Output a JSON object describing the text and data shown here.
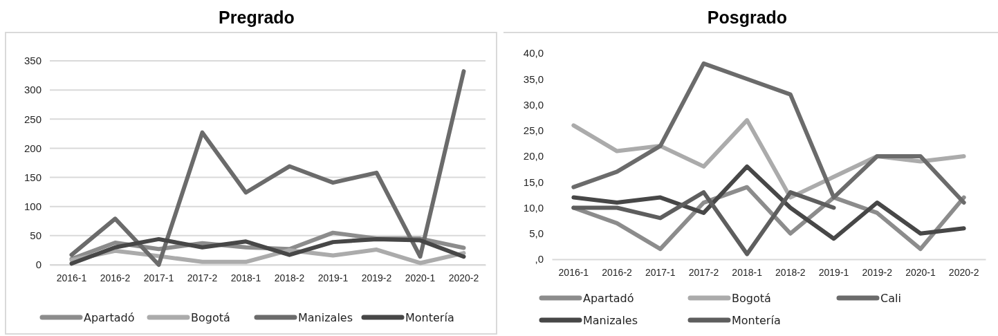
{
  "chart_data": [
    {
      "type": "line",
      "title": "Pregrado",
      "categories": [
        "2016-1",
        "2016-2",
        "2017-1",
        "2017-2",
        "2018-1",
        "2018-2",
        "2019-1",
        "2019-2",
        "2020-1",
        "2020-2"
      ],
      "ylim": [
        0,
        350
      ],
      "yticks": [
        0,
        50,
        100,
        150,
        200,
        250,
        300,
        350
      ],
      "grid": "y",
      "legend": "bottom",
      "marker": "none",
      "series": [
        {
          "name": "Apartadó",
          "color": "#8c8c8c",
          "values": [
            10,
            38,
            27,
            37,
            30,
            27,
            55,
            45,
            45,
            29
          ]
        },
        {
          "name": "Bogotá",
          "color": "#ababab",
          "values": [
            8,
            24,
            15,
            5,
            5,
            25,
            16,
            26,
            3,
            20
          ]
        },
        {
          "name": "Manizales",
          "color": "#6b6b6b",
          "values": [
            17,
            79,
            0,
            227,
            124,
            169,
            141,
            158,
            14,
            332
          ]
        },
        {
          "name": "Montería",
          "color": "#474747",
          "values": [
            2,
            30,
            44,
            30,
            40,
            17,
            39,
            44,
            42,
            14
          ]
        }
      ]
    },
    {
      "type": "line",
      "title": "Posgrado",
      "categories": [
        "2016-1",
        "2016-2",
        "2017-1",
        "2017-2",
        "2018-1",
        "2018-2",
        "2019-1",
        "2019-2",
        "2020-1",
        "2020-2"
      ],
      "ylim": [
        0,
        40
      ],
      "yticks": [
        {
          "value": 0,
          "label": ",0"
        },
        {
          "value": 5,
          "label": "5,0"
        },
        {
          "value": 10,
          "label": "10,0"
        },
        {
          "value": 15,
          "label": "15,0"
        },
        {
          "value": 20,
          "label": "20,0"
        },
        {
          "value": 25,
          "label": "25,0"
        },
        {
          "value": 30,
          "label": "30,0"
        },
        {
          "value": 35,
          "label": "35,0"
        },
        {
          "value": 40,
          "label": "40,0"
        }
      ],
      "grid": false,
      "legend": "bottom",
      "marker": "none",
      "series": [
        {
          "name": "Apartadó",
          "color": "#8c8c8c",
          "values": [
            10,
            7,
            2,
            11,
            14,
            5,
            12,
            9,
            2,
            12
          ]
        },
        {
          "name": "Bogotá",
          "color": "#ababab",
          "values": [
            26,
            21,
            22,
            18,
            27,
            12,
            16,
            20,
            19,
            20
          ]
        },
        {
          "name": "Cali",
          "color": "#6b6b6b",
          "values": [
            14,
            17,
            22,
            38,
            35,
            32,
            12,
            20,
            20,
            11
          ]
        },
        {
          "name": "Manizales",
          "color": "#474747",
          "values": [
            12,
            11,
            12,
            9,
            18,
            10,
            4,
            11,
            5,
            6
          ]
        },
        {
          "name": "Montería",
          "color": "#5e5e5e",
          "values": [
            10,
            10,
            8,
            13,
            1,
            13,
            10,
            null,
            null,
            null
          ]
        }
      ]
    }
  ]
}
